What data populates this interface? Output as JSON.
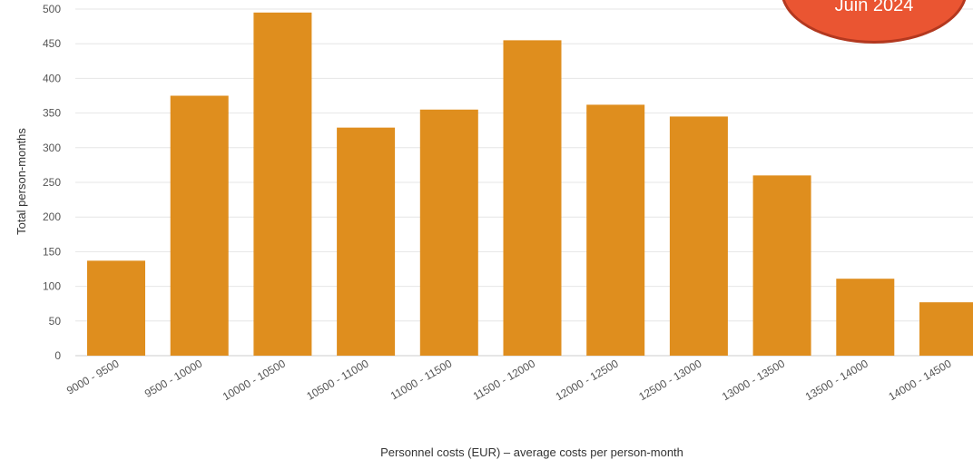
{
  "chart_data": {
    "type": "bar",
    "categories": [
      "9000 - 9500",
      "9500 - 10000",
      "10000 - 10500",
      "10500 - 11000",
      "11000 - 11500",
      "11500 - 12000",
      "12000 - 12500",
      "12500 - 13000",
      "13000 - 13500",
      "13500 - 14000",
      "14000 - 14500"
    ],
    "values": [
      137,
      375,
      495,
      329,
      355,
      455,
      362,
      345,
      260,
      111,
      77
    ],
    "xlabel": "Personnel costs (EUR) – average costs per person-month",
    "ylabel": "Total person-months",
    "ylim": [
      0,
      500
    ],
    "yticks": [
      0,
      50,
      100,
      150,
      200,
      250,
      300,
      350,
      400,
      450,
      500
    ],
    "bar_color": "#df8e1e",
    "grid": true
  },
  "badge": {
    "text": "Juin 2024",
    "color": "#ea5532"
  }
}
